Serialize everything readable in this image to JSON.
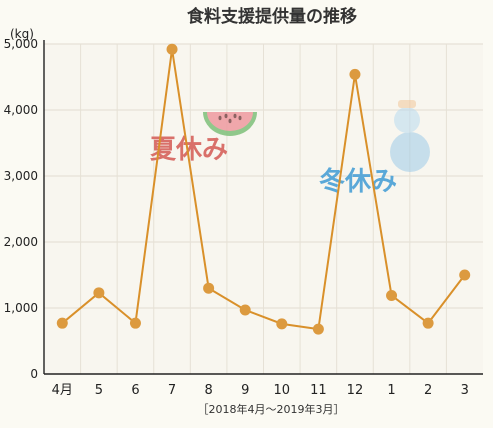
{
  "chart_data": {
    "type": "line",
    "title": "食料支援提供量の推移",
    "ylabel": "(kg)",
    "xlabel": "",
    "period_note": "［2018年4月〜2019年3月］",
    "categories": [
      "4月",
      "5",
      "6",
      "7",
      "8",
      "9",
      "10",
      "11",
      "12",
      "1",
      "2",
      "3"
    ],
    "series": [
      {
        "name": "",
        "values": [
          770,
          1230,
          770,
          4920,
          1300,
          970,
          760,
          680,
          4540,
          1190,
          770,
          1500
        ]
      }
    ],
    "ylim": [
      0,
      5000
    ],
    "yticks": [
      {
        "value": 0,
        "label": "0"
      },
      {
        "value": 1000,
        "label": "1,000"
      },
      {
        "value": 2000,
        "label": "2,000"
      },
      {
        "value": 3000,
        "label": "3,000"
      },
      {
        "value": 4000,
        "label": "4,000"
      },
      {
        "value": 5000,
        "label": "5,000"
      }
    ],
    "grid": true,
    "annotations": [
      {
        "text": "夏休み",
        "color": "#d9706a",
        "near_category": "7",
        "icon": "watermelon-icon"
      },
      {
        "text": "冬休み",
        "color": "#5aa8d8",
        "near_category": "12",
        "icon": "snowman-icon"
      }
    ],
    "colors": {
      "line": "#d9902a",
      "marker": "#dc9a3f",
      "grid": "#e6e1d6",
      "plot_bg": "#f8f6ef",
      "axis": "#222222"
    }
  }
}
